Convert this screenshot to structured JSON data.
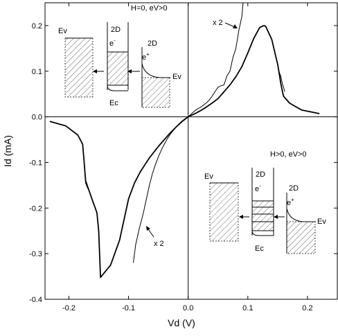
{
  "chart_data": {
    "type": "line",
    "xlabel": "Vd (V)",
    "ylabel": "Id (mA)",
    "xlim": [
      -0.24,
      0.25
    ],
    "ylim": [
      -0.4,
      0.25
    ],
    "x_ticks": [
      -0.2,
      -0.1,
      0.0,
      0.1,
      0.2
    ],
    "y_ticks": [
      0.2,
      0.1,
      0.0,
      -0.1,
      -0.2,
      -0.3,
      -0.4
    ],
    "x_tick_labels": [
      "-0.2",
      "-0.1",
      "0.0",
      "0.1",
      "0.2"
    ],
    "y_tick_labels": [
      "0.2",
      "0.1",
      "0.0",
      "-0.1",
      "-0.2",
      "-0.3",
      "-0.4"
    ],
    "grid": false,
    "series": [
      {
        "x": [
          -0.232,
          -0.205,
          -0.185,
          -0.177,
          -0.175,
          -0.172,
          -0.168,
          -0.16,
          -0.153,
          -0.15,
          -0.147,
          -0.13,
          -0.115,
          -0.1,
          -0.09,
          -0.08,
          -0.065,
          -0.05,
          -0.04,
          -0.03,
          -0.02,
          -0.01,
          0.0,
          0.01,
          0.02,
          0.03,
          0.04,
          0.05,
          0.06,
          0.07,
          0.08,
          0.09,
          0.1,
          0.11,
          0.12,
          0.127,
          0.13,
          0.14,
          0.15,
          0.152,
          0.155,
          0.158,
          0.16,
          0.17,
          0.19,
          0.22
        ],
        "values": [
          -0.01,
          -0.02,
          -0.04,
          -0.06,
          -0.09,
          -0.14,
          -0.155,
          -0.185,
          -0.21,
          -0.25,
          -0.352,
          -0.325,
          -0.27,
          -0.18,
          -0.145,
          -0.12,
          -0.09,
          -0.065,
          -0.05,
          -0.035,
          -0.022,
          -0.01,
          0.0,
          0.006,
          0.013,
          0.021,
          0.03,
          0.04,
          0.055,
          0.07,
          0.088,
          0.11,
          0.14,
          0.172,
          0.196,
          0.2,
          0.198,
          0.17,
          0.115,
          0.1,
          0.075,
          0.055,
          0.045,
          0.03,
          0.015,
          0.007
        ]
      },
      {
        "x": [
          -0.177,
          -0.175,
          -0.172,
          -0.168
        ],
        "values": [
          -0.06,
          -0.09,
          -0.145,
          -0.158
        ]
      },
      {
        "x": [
          0.152,
          0.155,
          0.158,
          0.162
        ],
        "values": [
          0.1,
          0.09,
          0.072,
          0.055
        ]
      },
      {
        "x": [
          -0.092,
          -0.088,
          -0.082,
          -0.075,
          -0.07,
          -0.065,
          -0.06,
          -0.055,
          -0.05,
          -0.045,
          -0.04,
          -0.035,
          -0.03,
          -0.025,
          -0.02,
          -0.015,
          -0.01,
          -0.005,
          0.0
        ],
        "values": [
          -0.32,
          -0.28,
          -0.245,
          -0.21,
          -0.18,
          -0.15,
          -0.125,
          -0.105,
          -0.088,
          -0.073,
          -0.06,
          -0.048,
          -0.038,
          -0.03,
          -0.022,
          -0.015,
          -0.009,
          -0.004,
          0.0
        ]
      },
      {
        "x": [
          0.0,
          0.005,
          0.01,
          0.015,
          0.02,
          0.025,
          0.03,
          0.035,
          0.04,
          0.045,
          0.05,
          0.055,
          0.06,
          0.065,
          0.07,
          0.075,
          0.08,
          0.085,
          0.09,
          0.092
        ],
        "values": [
          0.0,
          0.006,
          0.012,
          0.017,
          0.02,
          0.025,
          0.03,
          0.036,
          0.045,
          0.055,
          0.065,
          0.068,
          0.07,
          0.09,
          0.1,
          0.13,
          0.15,
          0.19,
          0.22,
          0.25
        ]
      }
    ],
    "annotations": {
      "top_condition": "H=0, eV>0",
      "bottom_condition": "H>0, eV>0",
      "scale_top": "x 2",
      "scale_bottom": "x 2",
      "ev": "Ev",
      "ec": "Ec",
      "two_d": "2D",
      "e_minus": "e",
      "e_plus": "e",
      "minus_sup": "-",
      "plus_sup": "+"
    }
  }
}
